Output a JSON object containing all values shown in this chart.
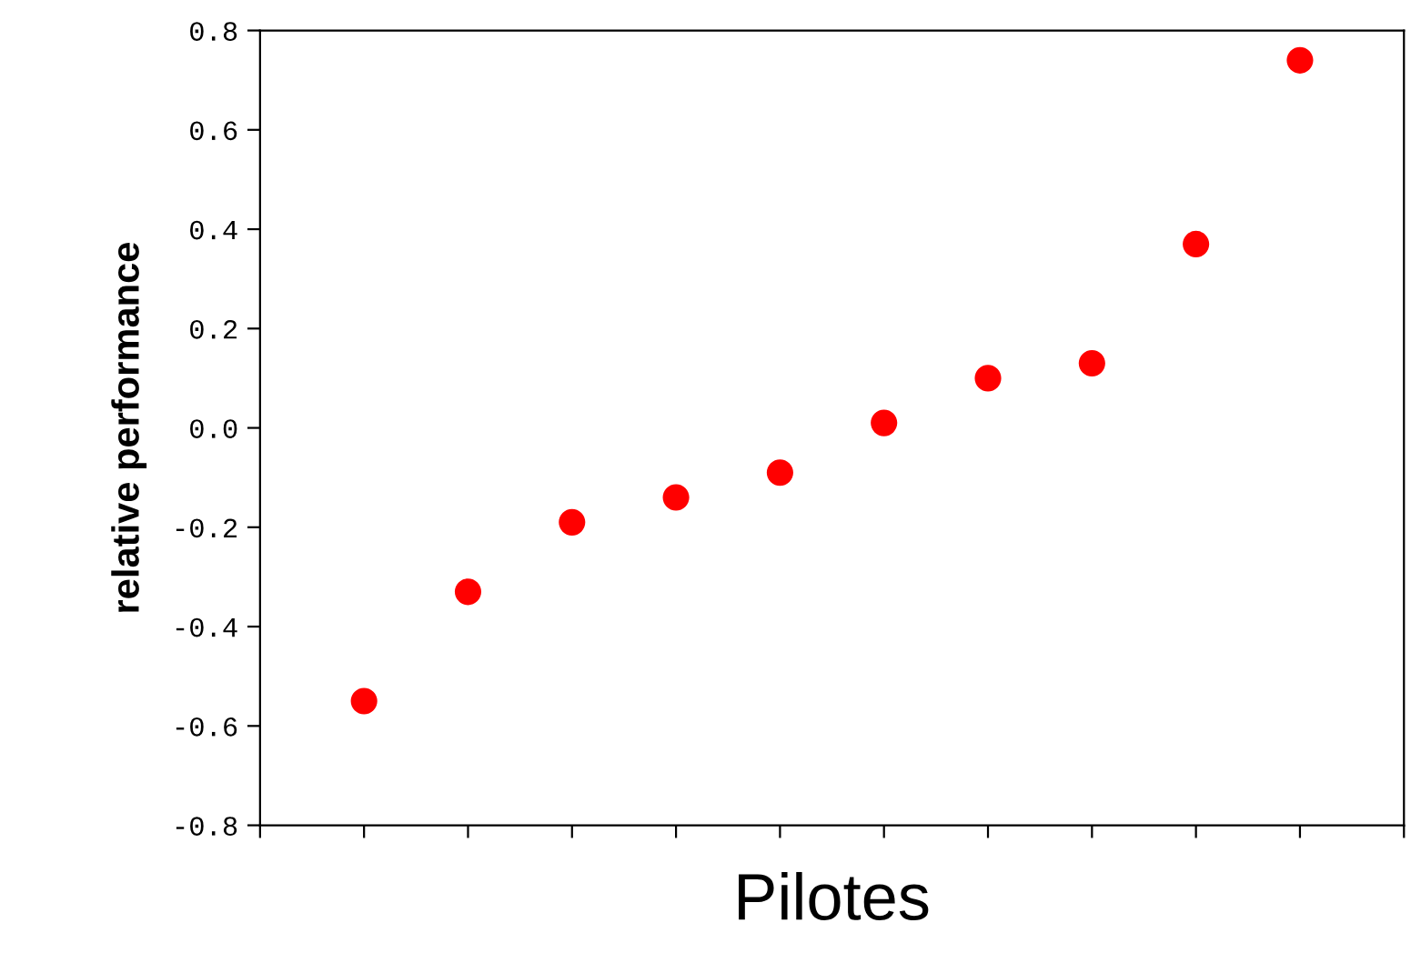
{
  "chart_data": {
    "type": "scatter",
    "xlabel": "Pilotes",
    "ylabel": "relative performance",
    "categories": [
      null,
      null,
      null,
      null,
      null,
      null,
      null,
      null,
      null,
      null
    ],
    "series": [
      {
        "color": "#ff0000",
        "values": [
          -0.55,
          -0.33,
          -0.19,
          -0.14,
          -0.09,
          0.01,
          0.1,
          0.13,
          0.37,
          0.74
        ]
      }
    ],
    "ylim": [
      -0.8,
      0.8
    ],
    "yticks": [
      -0.8,
      -0.6,
      -0.4,
      -0.2,
      {
        "value": 0,
        "label": "0.0"
      },
      0.2,
      0.4,
      0.6,
      0.8
    ],
    "marker": "circle",
    "grid": false,
    "tick_labels": "y"
  }
}
